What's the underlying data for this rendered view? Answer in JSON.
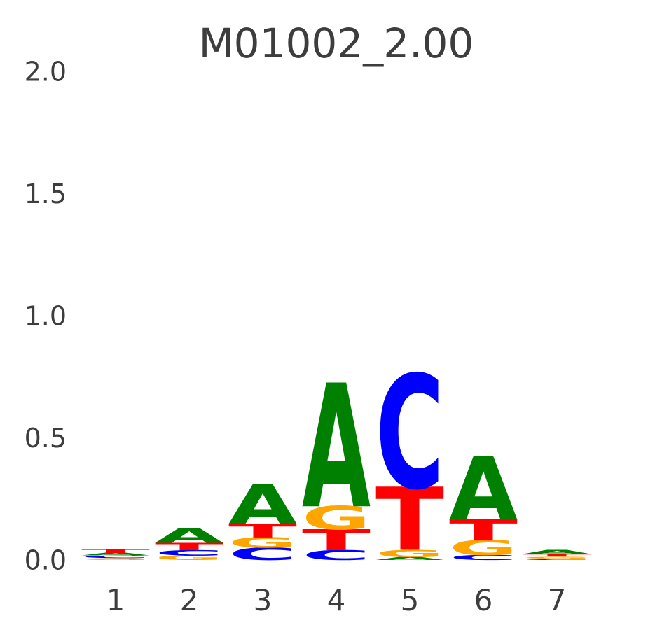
{
  "chart_data": {
    "type": "sequence_logo",
    "title": "M01002_2.00",
    "ylabel": "",
    "xlabel": "",
    "ylim": [
      0,
      2.0
    ],
    "ytick_labels": [
      "0.0",
      "0.5",
      "1.0",
      "1.5",
      "2.0"
    ],
    "xtick_labels": [
      "1",
      "2",
      "3",
      "4",
      "5",
      "6",
      "7"
    ],
    "colors": {
      "A": "#008000",
      "C": "#0000FF",
      "G": "#FFA500",
      "T": "#FF0000"
    },
    "text_color": "#3d3d3d",
    "stacks": [
      {
        "pos": "1",
        "letters": [
          {
            "base": "G",
            "height": 0.008
          },
          {
            "base": "C",
            "height": 0.01
          },
          {
            "base": "A",
            "height": 0.01
          },
          {
            "base": "T",
            "height": 0.016
          }
        ]
      },
      {
        "pos": "2",
        "letters": [
          {
            "base": "G",
            "height": 0.018
          },
          {
            "base": "C",
            "height": 0.022
          },
          {
            "base": "T",
            "height": 0.03
          },
          {
            "base": "A",
            "height": 0.06
          }
        ]
      },
      {
        "pos": "3",
        "letters": [
          {
            "base": "C",
            "height": 0.05
          },
          {
            "base": "G",
            "height": 0.042
          },
          {
            "base": "T",
            "height": 0.055
          },
          {
            "base": "A",
            "height": 0.16
          }
        ]
      },
      {
        "pos": "4",
        "letters": [
          {
            "base": "C",
            "height": 0.04
          },
          {
            "base": "T",
            "height": 0.085
          },
          {
            "base": "G",
            "height": 0.095
          },
          {
            "base": "A",
            "height": 0.5
          }
        ]
      },
      {
        "pos": "5",
        "letters": [
          {
            "base": "A",
            "height": 0.012
          },
          {
            "base": "G",
            "height": 0.03
          },
          {
            "base": "T",
            "height": 0.255
          },
          {
            "base": "C",
            "height": 0.46
          }
        ]
      },
      {
        "pos": "6",
        "letters": [
          {
            "base": "C",
            "height": 0.02
          },
          {
            "base": "G",
            "height": 0.06
          },
          {
            "base": "T",
            "height": 0.085
          },
          {
            "base": "A",
            "height": 0.255
          }
        ]
      },
      {
        "pos": "7",
        "letters": [
          {
            "base": "C",
            "height": 0.006
          },
          {
            "base": "G",
            "height": 0.008
          },
          {
            "base": "T",
            "height": 0.01
          },
          {
            "base": "A",
            "height": 0.016
          }
        ]
      }
    ]
  }
}
